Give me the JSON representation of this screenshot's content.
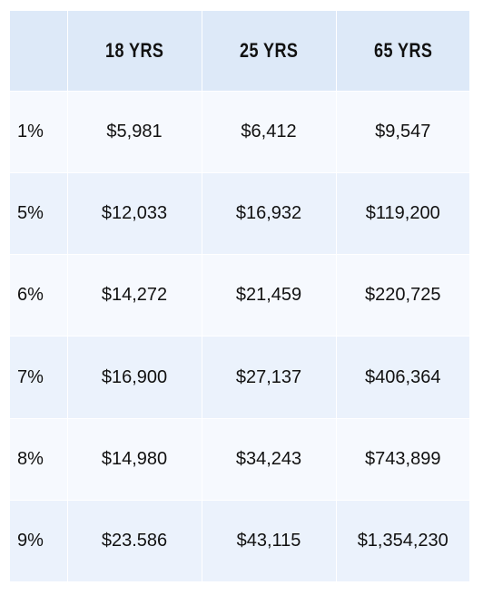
{
  "table": {
    "headers": [
      "",
      "18 YRS",
      "25 YRS",
      "65 YRS"
    ],
    "rows": [
      {
        "rate": "1%",
        "values": [
          "$5,981",
          "$6,412",
          "$9,547"
        ]
      },
      {
        "rate": "5%",
        "values": [
          "$12,033",
          "$16,932",
          "$119,200"
        ]
      },
      {
        "rate": "6%",
        "values": [
          "$14,272",
          "$21,459",
          "$220,725"
        ]
      },
      {
        "rate": "7%",
        "values": [
          "$16,900",
          "$27,137",
          "$406,364"
        ]
      },
      {
        "rate": "8%",
        "values": [
          "$14,980",
          "$34,243",
          "$743,899"
        ]
      },
      {
        "rate": "9%",
        "values": [
          "$23.586",
          "$43,115",
          "$1,354,230"
        ]
      }
    ]
  },
  "colors": {
    "header_bg": "#dde9f8",
    "row_light": "#f6f9fe",
    "row_dark": "#ebf2fc",
    "text": "#111111"
  }
}
